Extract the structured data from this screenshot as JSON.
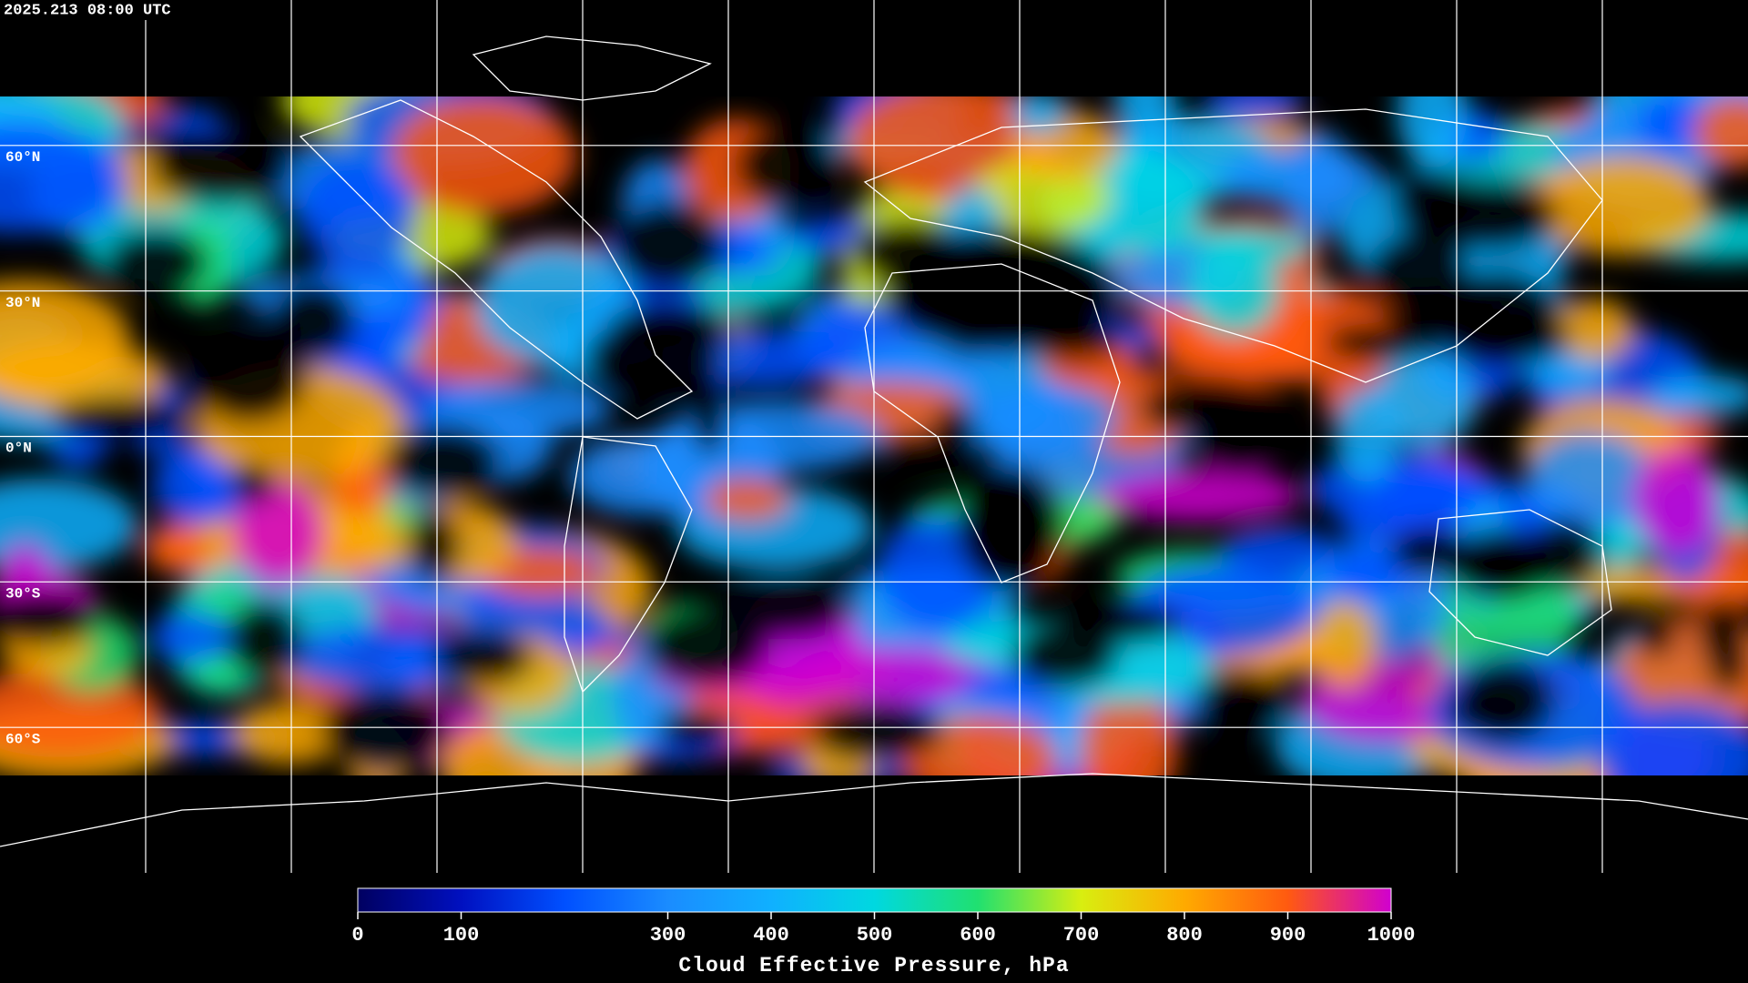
{
  "timestamp": "2025.213 08:00 UTC",
  "map": {
    "ylim": [
      -90,
      90
    ],
    "parallels": [
      {
        "value": 60,
        "label": "60°N"
      },
      {
        "value": 30,
        "label": "30°N"
      },
      {
        "value": 0,
        "label": "0°N"
      },
      {
        "value": -30,
        "label": "30°S"
      },
      {
        "value": -60,
        "label": "60°S"
      }
    ]
  },
  "colorbar": {
    "title": "Cloud Effective Pressure, hPa",
    "lim": [
      0,
      1000
    ],
    "ticks": [
      0,
      100,
      300,
      400,
      500,
      600,
      700,
      800,
      900,
      1000
    ],
    "colors": [
      "#000060",
      "#0010c0",
      "#0050ff",
      "#1a8cff",
      "#10b0ff",
      "#00d8e0",
      "#20e070",
      "#d8ee10",
      "#ffaa00",
      "#ff5a10",
      "#d000d0"
    ]
  }
}
